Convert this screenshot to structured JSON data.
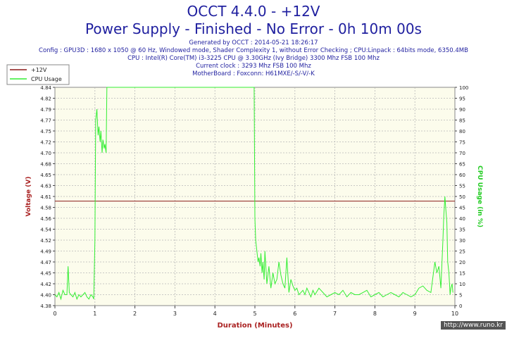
{
  "header": {
    "title": "OCCT 4.4.0 - +12V",
    "subtitle": "Power Supply - Finished - No Error - 0h 10m 00s",
    "info_lines": [
      "Generated by OCCT : 2014-05-21 18:26:17",
      "Config : GPU3D : 1680 x 1050 @ 60 Hz, Windowed mode, Shader Complexity 1, without Error Checking ; CPU:Linpack : 64bits mode, 6350.4MB",
      "CPU : Intel(R) Core(TM) i3-3225 CPU @ 3.30GHz (Ivy Bridge) 3300 Mhz FSB 100 Mhz",
      "Current clock : 3293 Mhz FSB 100 Mhz",
      "MotherBoard : Foxconn: H61MXE/-S/-V/-K"
    ]
  },
  "watermark": "http://www.runo.kr",
  "colors": {
    "title": "#1f1f9f",
    "voltage_line": "#8b1a1a",
    "cpu_line": "#33ee33",
    "plot_bg": "#fcfcec",
    "grid": "#b8b8b8"
  },
  "chart_data": {
    "type": "line",
    "xlabel": "Duration (Minutes)",
    "ylabel": "Voltage (V)",
    "y2label": "CPU Usage (in %)",
    "xlim": [
      0,
      10
    ],
    "ylim": [
      4.38,
      4.85
    ],
    "y2lim": [
      0,
      100
    ],
    "x_ticks": [
      "0",
      "1",
      "2",
      "3",
      "4",
      "5",
      "6",
      "7",
      "8",
      "9",
      "10"
    ],
    "y_ticks": [
      "4.38",
      "4.40",
      "4.42",
      "4.45",
      "4.47",
      "4.49",
      "4.52",
      "4.54",
      "4.56",
      "4.58",
      "4.61",
      "4.63",
      "4.65",
      "4.68",
      "4.70",
      "4.72",
      "4.75",
      "4.77",
      "4.79",
      "4.82",
      "4.84"
    ],
    "y2_ticks": [
      "0",
      "5",
      "10",
      "15",
      "20",
      "25",
      "30",
      "35",
      "40",
      "45",
      "50",
      "55",
      "60",
      "65",
      "70",
      "75",
      "80",
      "85",
      "90",
      "95",
      "100"
    ],
    "legend_position": "top-left",
    "grid": true,
    "series": [
      {
        "name": "+12V",
        "axis": "left",
        "x": [
          0,
          10
        ],
        "values": [
          4.605,
          4.605
        ]
      },
      {
        "name": "CPU Usage",
        "axis": "right",
        "x": [
          0,
          0.05,
          0.1,
          0.15,
          0.2,
          0.25,
          0.3,
          0.33,
          0.36,
          0.4,
          0.45,
          0.5,
          0.55,
          0.6,
          0.65,
          0.7,
          0.75,
          0.8,
          0.85,
          0.9,
          0.95,
          0.97,
          1.0,
          1.02,
          1.05,
          1.08,
          1.1,
          1.13,
          1.15,
          1.18,
          1.2,
          1.23,
          1.25,
          1.28,
          1.3,
          1.33,
          1.35,
          4.98,
          5.0,
          5.02,
          5.05,
          5.08,
          5.1,
          5.13,
          5.15,
          5.18,
          5.2,
          5.23,
          5.25,
          5.3,
          5.35,
          5.4,
          5.45,
          5.5,
          5.55,
          5.6,
          5.65,
          5.7,
          5.75,
          5.8,
          5.85,
          5.9,
          5.95,
          6.0,
          6.05,
          6.1,
          6.15,
          6.2,
          6.25,
          6.3,
          6.35,
          6.4,
          6.45,
          6.5,
          6.6,
          6.7,
          6.8,
          6.9,
          7.0,
          7.1,
          7.2,
          7.3,
          7.4,
          7.5,
          7.6,
          7.7,
          7.8,
          7.9,
          8.0,
          8.1,
          8.2,
          8.3,
          8.4,
          8.5,
          8.6,
          8.7,
          8.8,
          8.9,
          9.0,
          9.1,
          9.2,
          9.3,
          9.4,
          9.5,
          9.55,
          9.6,
          9.65,
          9.7,
          9.72,
          9.75,
          9.77,
          9.8,
          9.82,
          9.85,
          9.88,
          9.9,
          9.93,
          9.95
        ],
        "values": [
          5,
          4,
          6,
          3,
          7,
          5,
          5,
          18,
          6,
          5,
          4,
          6,
          3,
          5,
          4,
          5,
          6,
          4,
          3,
          5,
          4,
          3,
          30,
          85,
          90,
          78,
          82,
          75,
          80,
          70,
          76,
          72,
          74,
          70,
          100,
          100,
          100,
          100,
          40,
          30,
          25,
          20,
          22,
          18,
          24,
          15,
          20,
          12,
          25,
          10,
          18,
          8,
          15,
          10,
          12,
          20,
          14,
          10,
          8,
          22,
          6,
          12,
          9,
          7,
          8,
          5,
          6,
          7,
          5,
          8,
          6,
          4,
          7,
          5,
          8,
          6,
          4,
          5,
          6,
          5,
          7,
          4,
          6,
          5,
          5,
          6,
          7,
          4,
          5,
          6,
          4,
          5,
          6,
          5,
          4,
          6,
          5,
          4,
          5,
          8,
          9,
          7,
          6,
          20,
          15,
          18,
          8,
          30,
          40,
          50,
          45,
          38,
          20,
          15,
          5,
          8,
          10,
          6
        ]
      }
    ]
  }
}
